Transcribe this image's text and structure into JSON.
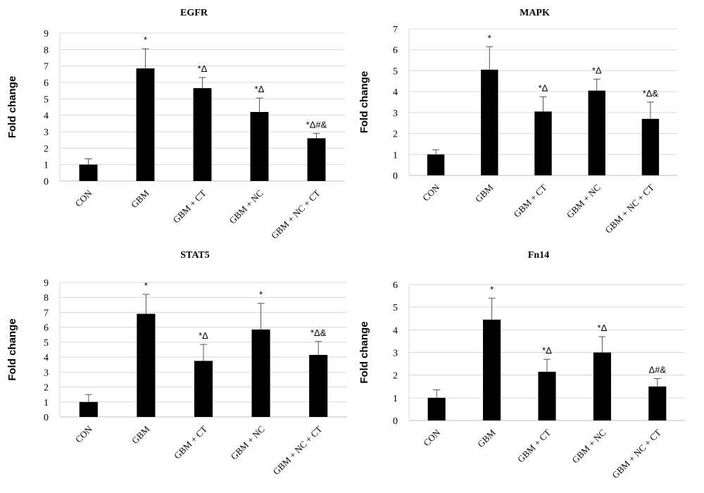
{
  "chart_data": [
    {
      "id": "egfr",
      "type": "bar",
      "title": "EGFR",
      "ylabel": "Fold change",
      "xlabel": "",
      "categories": [
        "CON",
        "GBM",
        "GBM + CT",
        "GBM + NC",
        "GBM + NC + CT"
      ],
      "values": [
        1.0,
        6.85,
        5.65,
        4.2,
        2.6
      ],
      "errors": [
        0.35,
        1.2,
        0.65,
        0.85,
        0.3
      ],
      "annotations": [
        "",
        "*",
        "*Δ",
        "*Δ",
        "*Δ#&"
      ],
      "ylim": [
        0,
        9
      ],
      "yticks": [
        0,
        1,
        2,
        3,
        4,
        5,
        6,
        7,
        8,
        9
      ],
      "grid": "horizontal",
      "legend": "none",
      "bar_color": "#000000"
    },
    {
      "id": "mapk",
      "type": "bar",
      "title": "MAPK",
      "ylabel": "Fold change",
      "xlabel": "",
      "categories": [
        "CON",
        "GBM",
        "GBM + CT",
        "GBM + NC",
        "GBM + NC + CT"
      ],
      "values": [
        1.0,
        5.05,
        3.05,
        4.05,
        2.7
      ],
      "errors": [
        0.22,
        1.1,
        0.7,
        0.55,
        0.8
      ],
      "annotations": [
        "",
        "*",
        "*Δ",
        "*Δ",
        "*Δ&"
      ],
      "ylim": [
        0,
        7
      ],
      "yticks": [
        0,
        1,
        2,
        3,
        4,
        5,
        6,
        7
      ],
      "grid": "horizontal",
      "legend": "none",
      "bar_color": "#000000"
    },
    {
      "id": "stat5",
      "type": "bar",
      "title": "STAT5",
      "ylabel": "Fold change",
      "xlabel": "",
      "categories": [
        "CON",
        "GBM",
        "GBM + CT",
        "GBM + NC",
        "GBM + NC + CT"
      ],
      "values": [
        1.0,
        6.9,
        3.75,
        5.85,
        4.15
      ],
      "errors": [
        0.5,
        1.3,
        1.1,
        1.75,
        0.9
      ],
      "annotations": [
        "",
        "*",
        "*Δ",
        "*",
        "*Δ&"
      ],
      "ylim": [
        0,
        9
      ],
      "yticks": [
        0,
        1,
        2,
        3,
        4,
        5,
        6,
        7,
        8,
        9
      ],
      "grid": "horizontal",
      "legend": "none",
      "bar_color": "#000000"
    },
    {
      "id": "fn14",
      "type": "bar",
      "title": "Fn14",
      "ylabel": "Fold change",
      "xlabel": "",
      "categories": [
        "CON",
        "GBM",
        "GBM + CT",
        "GBM + NC",
        "GBM + NC + CT"
      ],
      "values": [
        1.0,
        4.45,
        2.15,
        3.0,
        1.5
      ],
      "errors": [
        0.35,
        0.95,
        0.55,
        0.7,
        0.35
      ],
      "annotations": [
        "",
        "*",
        "*Δ",
        "*Δ",
        "Δ#&"
      ],
      "ylim": [
        0,
        6
      ],
      "yticks": [
        0,
        1,
        2,
        3,
        4,
        5,
        6
      ],
      "grid": "horizontal",
      "legend": "none",
      "bar_color": "#000000"
    }
  ]
}
